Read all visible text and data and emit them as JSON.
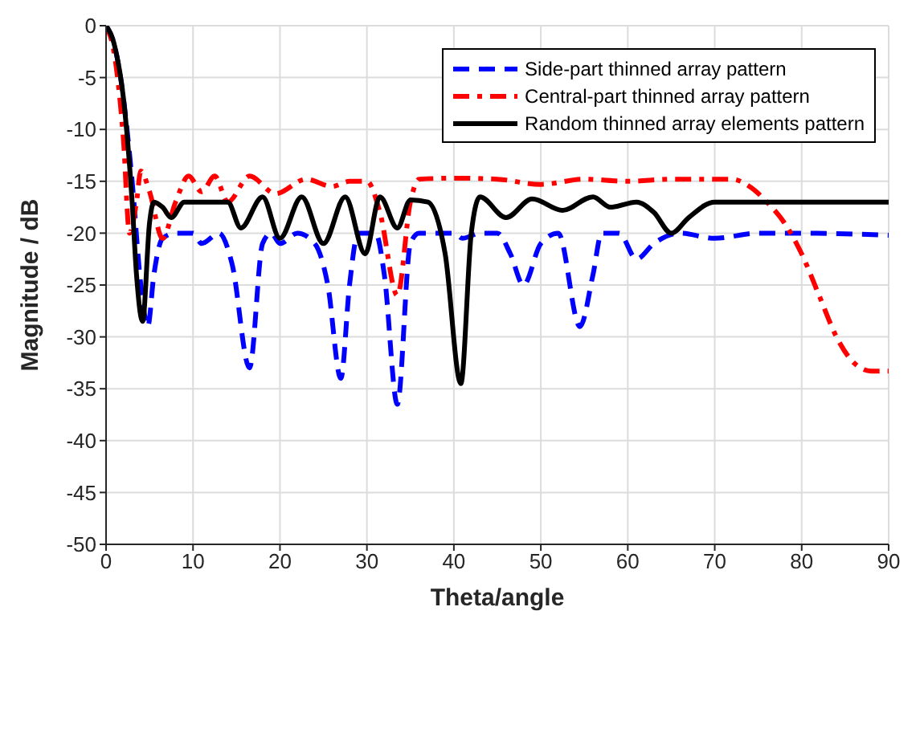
{
  "chart_data": {
    "type": "line",
    "xlabel": "Theta/angle",
    "ylabel": "Magnitude / dB",
    "xlim": [
      0,
      90
    ],
    "xticks": [
      0,
      10,
      20,
      30,
      40,
      50,
      60,
      70,
      80,
      90
    ],
    "ylim": [
      -50,
      0
    ],
    "yticks": [
      -50,
      -45,
      -40,
      -35,
      -30,
      -25,
      -20,
      -15,
      -10,
      -5,
      0
    ],
    "grid": true,
    "legend": "top right",
    "marker": "none",
    "series": [
      {
        "name": "Side-part thinned array pattern",
        "color": "#0000ff",
        "line_style": "dashed",
        "x": [
          0,
          1,
          2,
          3,
          4,
          4.8,
          5.5,
          6.5,
          8,
          10,
          11,
          13,
          14.5,
          16.5,
          18,
          19,
          20,
          22,
          24,
          25.5,
          27,
          28,
          29,
          31,
          32,
          33.5,
          35,
          36,
          38,
          40,
          41,
          43,
          45,
          46.5,
          48,
          50,
          52,
          54.5,
          56,
          57,
          59,
          61,
          63,
          66,
          70,
          75,
          80,
          90
        ],
        "values": [
          0,
          -2,
          -7,
          -15,
          -25,
          -29,
          -24,
          -20.5,
          -20,
          -20,
          -21,
          -20,
          -23,
          -33,
          -21,
          -20,
          -21,
          -20,
          -21,
          -25,
          -34,
          -25,
          -20,
          -20,
          -24,
          -36.5,
          -21,
          -20,
          -20,
          -20,
          -20.5,
          -20,
          -20,
          -22,
          -25,
          -21,
          -20,
          -29,
          -24,
          -20,
          -20,
          -22.5,
          -21,
          -20,
          -20.5,
          -20,
          -20,
          -20.2
        ]
      },
      {
        "name": "Central-part thinned array pattern",
        "color": "#ff0000",
        "line_style": "dashdot",
        "x": [
          0,
          1,
          2,
          2.7,
          3.5,
          4,
          5,
          6.5,
          8,
          9.5,
          11,
          12.5,
          14,
          16.5,
          19.5,
          23,
          26,
          28,
          30,
          31.5,
          33.5,
          35,
          36,
          40,
          45,
          50,
          55,
          60,
          65,
          72,
          74,
          76,
          78,
          80,
          82,
          84,
          86,
          88,
          90
        ],
        "values": [
          0,
          -3,
          -11,
          -20,
          -17,
          -14,
          -16,
          -20.5,
          -17,
          -14.5,
          -16,
          -14.5,
          -17,
          -14.5,
          -16.2,
          -14.8,
          -15.5,
          -15,
          -15,
          -18,
          -26,
          -17,
          -14.8,
          -14.7,
          -14.8,
          -15.3,
          -14.8,
          -15,
          -14.8,
          -14.8,
          -15.5,
          -17,
          -19,
          -22,
          -26,
          -30,
          -32.5,
          -33.3,
          -33.3
        ]
      },
      {
        "name": "Random thinned array elements pattern",
        "color": "#000000",
        "line_style": "solid",
        "x": [
          0,
          1,
          2,
          3,
          3.5,
          4.2,
          5,
          5.5,
          6.5,
          7.5,
          9,
          11,
          14,
          15.5,
          18,
          20,
          22.5,
          25,
          27.5,
          29.8,
          31.5,
          33.5,
          35,
          37,
          39,
          40.8,
          42,
          43,
          46,
          49,
          52.5,
          56,
          58,
          61,
          63,
          65,
          67,
          70,
          75,
          80,
          90
        ],
        "values": [
          0,
          -2,
          -7,
          -17,
          -24,
          -28.5,
          -19,
          -17,
          -17.5,
          -18.5,
          -17,
          -17,
          -17,
          -19.5,
          -16.5,
          -20.5,
          -16.5,
          -21,
          -16.5,
          -22,
          -16.5,
          -19.5,
          -16.8,
          -17,
          -22,
          -34.5,
          -20,
          -16.5,
          -18.5,
          -16.7,
          -17.8,
          -16.5,
          -17.5,
          -17,
          -18,
          -20,
          -18.5,
          -17,
          -17,
          -17,
          -17
        ]
      }
    ]
  }
}
